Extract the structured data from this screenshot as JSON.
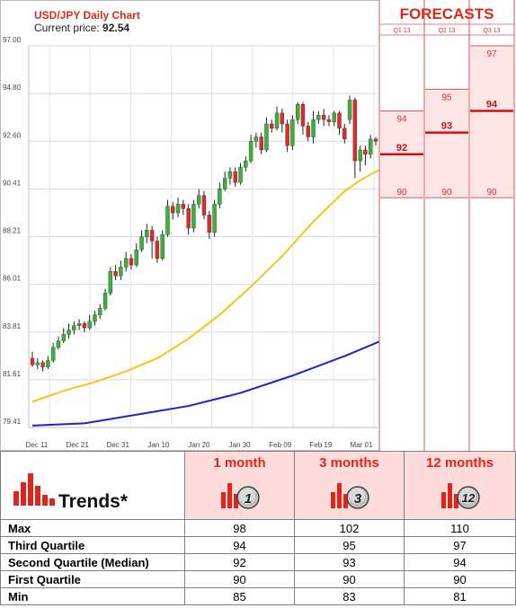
{
  "header": {
    "title": "USD/JPY Daily Chart",
    "price_label": "Current price:",
    "price_value": "92.54"
  },
  "forecasts": {
    "title": "FORECASTS",
    "quarters": [
      "Q1 13",
      "Q2 13",
      "Q3 13"
    ],
    "columns": [
      {
        "high": 94,
        "mid": 92,
        "low": 90
      },
      {
        "high": 95,
        "mid": 93,
        "low": 90
      },
      {
        "high": 97,
        "mid": 94,
        "low": 90
      }
    ]
  },
  "chart_data": {
    "type": "candlestick",
    "title": "USD/JPY Daily Chart",
    "y_ticks": [
      "97.00",
      "94.80",
      "92.60",
      "90.41",
      "88.21",
      "86.01",
      "83.81",
      "81.61",
      "79.41"
    ],
    "ylim": [
      79.41,
      97.0
    ],
    "x_ticks": [
      "Dec 11",
      "Dec 21",
      "Dec 31",
      "Jan 10",
      "Jan 20",
      "Jan 30",
      "Feb 09",
      "Feb 19",
      "Mar 01"
    ],
    "candles": [
      [
        82.6,
        82.3,
        82.9,
        82.2
      ],
      [
        82.3,
        82.4,
        82.6,
        82.1
      ],
      [
        82.4,
        82.2,
        82.5,
        82.0
      ],
      [
        82.2,
        82.5,
        82.7,
        82.1
      ],
      [
        82.5,
        83.1,
        83.3,
        82.4
      ],
      [
        83.1,
        83.4,
        83.6,
        83.0
      ],
      [
        83.4,
        83.7,
        84.0,
        83.3
      ],
      [
        83.7,
        83.9,
        84.2,
        83.5
      ],
      [
        83.9,
        84.1,
        84.3,
        83.7
      ],
      [
        84.1,
        84.2,
        84.4,
        83.9
      ],
      [
        84.2,
        84.0,
        84.3,
        83.8
      ],
      [
        84.0,
        84.3,
        84.6,
        83.9
      ],
      [
        84.3,
        84.6,
        84.8,
        84.1
      ],
      [
        84.6,
        84.9,
        85.1,
        84.4
      ],
      [
        84.9,
        85.6,
        85.8,
        84.8
      ],
      [
        85.6,
        86.6,
        86.8,
        85.5
      ],
      [
        86.6,
        86.4,
        86.9,
        86.2
      ],
      [
        86.4,
        86.8,
        87.1,
        86.2
      ],
      [
        86.8,
        87.2,
        87.5,
        86.6
      ],
      [
        87.2,
        86.9,
        87.4,
        86.7
      ],
      [
        86.9,
        87.6,
        87.9,
        86.8
      ],
      [
        87.6,
        88.2,
        88.5,
        87.5
      ],
      [
        88.2,
        88.5,
        88.8,
        87.9
      ],
      [
        88.5,
        88.0,
        88.7,
        87.2
      ],
      [
        88.0,
        87.2,
        88.2,
        87.0
      ],
      [
        87.2,
        88.3,
        88.5,
        87.1
      ],
      [
        88.3,
        89.6,
        89.9,
        88.2
      ],
      [
        89.6,
        89.3,
        89.8,
        89.0
      ],
      [
        89.3,
        89.7,
        90.0,
        89.1
      ],
      [
        89.7,
        89.5,
        89.9,
        89.2
      ],
      [
        89.5,
        88.6,
        89.7,
        88.3
      ],
      [
        88.6,
        89.7,
        89.9,
        88.4
      ],
      [
        89.7,
        90.1,
        90.4,
        89.5
      ],
      [
        90.1,
        89.2,
        90.3,
        89.0
      ],
      [
        89.2,
        88.4,
        89.4,
        88.1
      ],
      [
        88.4,
        89.7,
        89.9,
        88.2
      ],
      [
        89.7,
        90.4,
        90.7,
        89.5
      ],
      [
        90.4,
        90.9,
        91.2,
        90.3
      ],
      [
        90.9,
        91.2,
        91.4,
        90.6
      ],
      [
        91.2,
        90.7,
        91.4,
        90.5
      ],
      [
        90.7,
        91.4,
        91.6,
        90.6
      ],
      [
        91.4,
        91.7,
        91.9,
        91.2
      ],
      [
        91.7,
        92.6,
        92.9,
        91.6
      ],
      [
        92.6,
        92.8,
        93.0,
        92.3
      ],
      [
        92.8,
        92.2,
        93.0,
        92.0
      ],
      [
        92.2,
        93.4,
        93.7,
        92.1
      ],
      [
        93.4,
        93.2,
        93.6,
        93.0
      ],
      [
        93.2,
        93.9,
        94.2,
        93.1
      ],
      [
        93.9,
        93.4,
        94.1,
        93.0
      ],
      [
        93.4,
        92.4,
        93.6,
        92.1
      ],
      [
        92.4,
        93.6,
        93.8,
        92.2
      ],
      [
        93.6,
        94.3,
        94.4,
        93.4
      ],
      [
        94.3,
        93.3,
        94.4,
        92.9
      ],
      [
        93.3,
        92.8,
        93.5,
        92.6
      ],
      [
        92.8,
        93.6,
        94.0,
        92.5
      ],
      [
        93.6,
        93.8,
        94.0,
        93.4
      ],
      [
        93.8,
        93.6,
        94.1,
        93.3
      ],
      [
        93.6,
        93.5,
        93.8,
        93.3
      ],
      [
        93.5,
        93.9,
        94.0,
        93.3
      ],
      [
        93.9,
        93.2,
        94.0,
        92.9
      ],
      [
        93.2,
        92.7,
        93.4,
        92.5
      ],
      [
        93.6,
        94.5,
        94.7,
        93.4
      ],
      [
        94.5,
        91.7,
        94.6,
        90.9
      ],
      [
        91.7,
        92.2,
        92.4,
        91.2
      ],
      [
        92.2,
        92.0,
        92.4,
        91.5
      ],
      [
        92.0,
        92.7,
        92.9,
        91.8
      ],
      [
        92.7,
        92.6,
        92.8,
        92.4
      ]
    ],
    "ma_yellow": [
      [
        0,
        80.6
      ],
      [
        6,
        81.1
      ],
      [
        12,
        81.5
      ],
      [
        18,
        82.0
      ],
      [
        24,
        82.6
      ],
      [
        30,
        83.5
      ],
      [
        36,
        84.6
      ],
      [
        42,
        85.9
      ],
      [
        48,
        87.3
      ],
      [
        54,
        88.9
      ],
      [
        60,
        90.3
      ],
      [
        63,
        90.8
      ],
      [
        66,
        91.2
      ],
      [
        67,
        91.3
      ]
    ],
    "ma_blue": [
      [
        0,
        79.5
      ],
      [
        10,
        79.6
      ],
      [
        20,
        80.0
      ],
      [
        30,
        80.4
      ],
      [
        40,
        81.0
      ],
      [
        50,
        81.8
      ],
      [
        60,
        82.7
      ],
      [
        67,
        83.4
      ]
    ]
  },
  "trends": {
    "label": "Trends*",
    "columns": [
      {
        "title": "1 month",
        "badge": "1"
      },
      {
        "title": "3 months",
        "badge": "3"
      },
      {
        "title": "12 months",
        "badge": "12"
      }
    ],
    "rows": [
      {
        "label": "Max",
        "values": [
          "98",
          "102",
          "110"
        ]
      },
      {
        "label": "Third Quartile",
        "values": [
          "94",
          "95",
          "97"
        ]
      },
      {
        "label": "Second Quartile (Median)",
        "values": [
          "92",
          "93",
          "94"
        ]
      },
      {
        "label": "First Quartile",
        "values": [
          "90",
          "90",
          "90"
        ]
      },
      {
        "label": "Min",
        "values": [
          "85",
          "83",
          "81"
        ]
      }
    ]
  },
  "colors": {
    "up": "#3bb33b",
    "down": "#e02b2b",
    "wick": "#222222",
    "ma_yellow": "#f5c518",
    "ma_blue": "#2020c8",
    "accent": "#e0241a",
    "forecast_bg": "#ffe6e6"
  }
}
